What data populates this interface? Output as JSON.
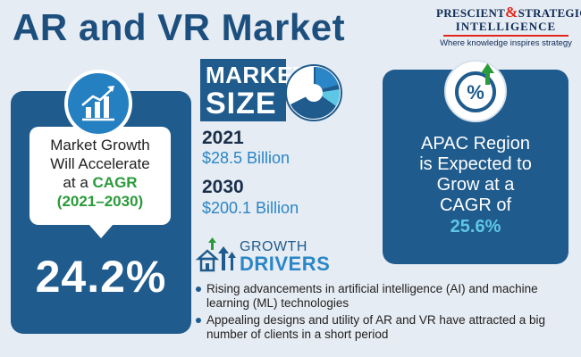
{
  "title": "AR and VR Market",
  "logo": {
    "line1_a": "PRESCIENT",
    "amp": "&",
    "line1_b": "STRATEGIC",
    "line2": "INTELLIGENCE",
    "tagline": "Where knowledge inspires strategy"
  },
  "growth_card": {
    "line1": "Market Growth",
    "line2": "Will Accelerate",
    "line3_prefix": "at a ",
    "line3_highlight": "CAGR",
    "years": "(2021–2030)",
    "value": "24.2%",
    "icon": "bar-chart-growth-icon"
  },
  "market_size": {
    "label_top": "MARKET",
    "label_bottom": "SIZE",
    "icon": "pie-chart-icon",
    "entries": [
      {
        "year": "2021",
        "value": "$28.5 Billion"
      },
      {
        "year": "2030",
        "value": "$200.1 Billion"
      }
    ]
  },
  "apac": {
    "icon": "percent-up-arrow-icon",
    "line1": "APAC Region",
    "line2": "is Expected to",
    "line3": "Grow at a",
    "line4": "CAGR of",
    "value": "25.6%"
  },
  "growth_drivers": {
    "label_top": "GROWTH",
    "label_bottom": "DRIVERS",
    "icon": "houses-arrows-icon",
    "items": [
      "Rising advancements in artificial intelligence (AI) and machine learning (ML) technologies",
      "Appealing designs and utility of AR and VR have attracted a big number of clients in a short period"
    ]
  },
  "colors": {
    "navy": "#1f5b8d",
    "title": "#1d4f7e",
    "accent_blue": "#2a86c6",
    "green": "#2a9a3a",
    "cyan": "#5ec7e6",
    "logo_red": "#e1261c"
  }
}
